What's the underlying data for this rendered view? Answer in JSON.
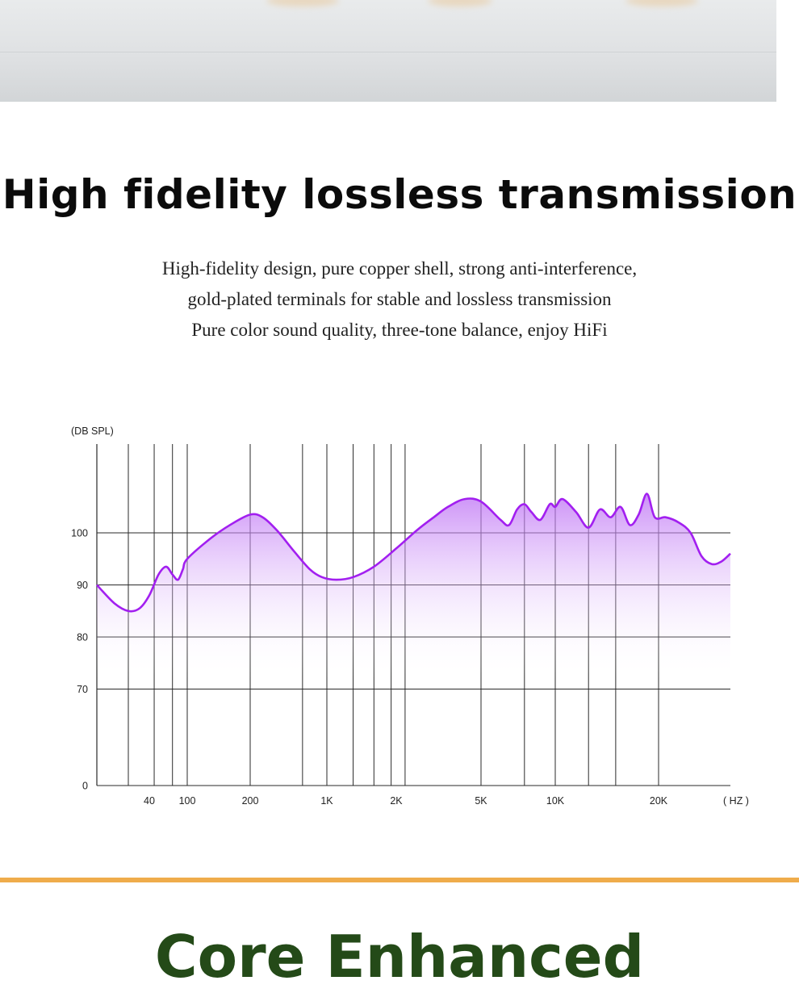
{
  "header_image": {
    "description_color": "#e0e2e4",
    "accent": "#e8c79a"
  },
  "section": {
    "title": "High fidelity lossless transmission",
    "lines": [
      "High-fidelity design, pure copper shell, strong anti-interference,",
      "gold-plated terminals for stable and lossless transmission",
      "Pure color sound quality, three-tone balance, enjoy HiFi"
    ]
  },
  "chart_data": {
    "type": "area",
    "title": "",
    "ylabel": "(DB SPL)",
    "xlabel": "( HZ )",
    "y_ticks": [
      {
        "label": "100",
        "value": 100
      },
      {
        "label": "90",
        "value": 90
      },
      {
        "label": "80",
        "value": 80
      },
      {
        "label": "70",
        "value": 70
      },
      {
        "label": "0",
        "value": 0
      }
    ],
    "x_ticks": [
      {
        "label": "40",
        "value": 40
      },
      {
        "label": "100",
        "value": 100
      },
      {
        "label": "200",
        "value": 200
      },
      {
        "label": "1K",
        "value": 1000
      },
      {
        "label": "2K",
        "value": 2000
      },
      {
        "label": "5K",
        "value": 5000
      },
      {
        "label": "10K",
        "value": 10000
      },
      {
        "label": "20K",
        "value": 20000
      }
    ],
    "x_gridlines": [
      30,
      45,
      70,
      100,
      200,
      600,
      1000,
      1300,
      1600,
      1900,
      2200,
      5000,
      7500,
      10000,
      12500,
      15000,
      20000
    ],
    "grid": true,
    "colors": {
      "line": "#a21ff0",
      "fill_top": "#bb6cf4",
      "fill_bottom": "#ffffff",
      "grid": "#2a2a2a"
    },
    "series": [
      {
        "points": [
          [
            20,
            90.0
          ],
          [
            25,
            86.5
          ],
          [
            30,
            85.0
          ],
          [
            35,
            85.5
          ],
          [
            40,
            88.0
          ],
          [
            50,
            92.0
          ],
          [
            60,
            93.5
          ],
          [
            70,
            92.0
          ],
          [
            80,
            91.0
          ],
          [
            90,
            93.0
          ],
          [
            100,
            95.0
          ],
          [
            130,
            99.0
          ],
          [
            160,
            101.5
          ],
          [
            200,
            103.5
          ],
          [
            260,
            103.0
          ],
          [
            350,
            100.5
          ],
          [
            500,
            96.5
          ],
          [
            700,
            93.0
          ],
          [
            900,
            91.5
          ],
          [
            1100,
            91.0
          ],
          [
            1300,
            91.5
          ],
          [
            1600,
            93.5
          ],
          [
            2000,
            97.0
          ],
          [
            2500,
            100.5
          ],
          [
            3000,
            103.0
          ],
          [
            3500,
            105.0
          ],
          [
            4200,
            106.5
          ],
          [
            5000,
            106.0
          ],
          [
            6000,
            102.5
          ],
          [
            6500,
            101.5
          ],
          [
            7000,
            104.5
          ],
          [
            7500,
            105.5
          ],
          [
            8000,
            104.0
          ],
          [
            8700,
            102.5
          ],
          [
            9500,
            105.5
          ],
          [
            10000,
            105.0
          ],
          [
            10500,
            106.5
          ],
          [
            11500,
            104.0
          ],
          [
            12500,
            101.0
          ],
          [
            13500,
            104.5
          ],
          [
            14500,
            103.0
          ],
          [
            15500,
            105.0
          ],
          [
            16500,
            101.5
          ],
          [
            17500,
            103.5
          ],
          [
            18500,
            107.5
          ],
          [
            19500,
            103.0
          ],
          [
            21000,
            103.0
          ],
          [
            23000,
            102.0
          ],
          [
            25000,
            100.0
          ],
          [
            27000,
            95.5
          ],
          [
            29000,
            94.0
          ],
          [
            31000,
            94.5
          ],
          [
            33000,
            96.0
          ]
        ]
      }
    ]
  },
  "next_section": {
    "title_fragment": "Core Enhanced"
  }
}
